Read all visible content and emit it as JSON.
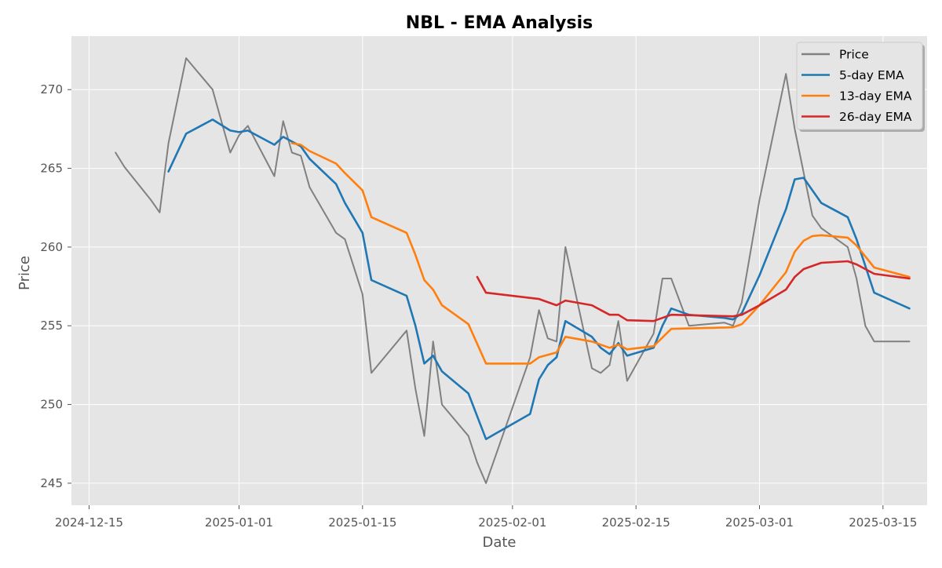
{
  "chart_data": {
    "type": "line",
    "title": "NBL - EMA Analysis",
    "xlabel": "Date",
    "ylabel": "Price",
    "xlim": [
      "2024-12-13",
      "2025-03-20"
    ],
    "ylim": [
      243.6,
      273.4
    ],
    "x_ticks": [
      "2024-12-15",
      "2025-01-01",
      "2025-01-15",
      "2025-02-01",
      "2025-02-15",
      "2025-03-01",
      "2025-03-15"
    ],
    "y_ticks": [
      245,
      250,
      255,
      260,
      265,
      270
    ],
    "grid": true,
    "legend_position": "top-right",
    "series": [
      {
        "name": "Price",
        "color": "#808080",
        "points": [
          [
            "2024-12-18",
            266.0
          ],
          [
            "2024-12-19",
            265.1
          ],
          [
            "2024-12-22",
            263.0
          ],
          [
            "2024-12-23",
            262.2
          ],
          [
            "2024-12-24",
            266.6
          ],
          [
            "2024-12-26",
            272.0
          ],
          [
            "2024-12-29",
            270.0
          ],
          [
            "2024-12-30",
            268.0
          ],
          [
            "2024-12-31",
            266.0
          ],
          [
            "2025-01-01",
            267.1
          ],
          [
            "2025-01-02",
            267.7
          ],
          [
            "2025-01-05",
            264.5
          ],
          [
            "2025-01-06",
            268.0
          ],
          [
            "2025-01-07",
            266.0
          ],
          [
            "2025-01-08",
            265.8
          ],
          [
            "2025-01-09",
            263.8
          ],
          [
            "2025-01-12",
            260.9
          ],
          [
            "2025-01-13",
            260.5
          ],
          [
            "2025-01-15",
            257.0
          ],
          [
            "2025-01-16",
            252.0
          ],
          [
            "2025-01-20",
            254.7
          ],
          [
            "2025-01-21",
            251.0
          ],
          [
            "2025-01-22",
            248.0
          ],
          [
            "2025-01-23",
            254.0
          ],
          [
            "2025-01-24",
            250.0
          ],
          [
            "2025-01-27",
            248.0
          ],
          [
            "2025-01-28",
            246.3
          ],
          [
            "2025-01-29",
            245.0
          ],
          [
            "2025-02-03",
            253.0
          ],
          [
            "2025-02-04",
            256.0
          ],
          [
            "2025-02-05",
            254.2
          ],
          [
            "2025-02-06",
            254.0
          ],
          [
            "2025-02-07",
            260.0
          ],
          [
            "2025-02-10",
            252.3
          ],
          [
            "2025-02-11",
            252.0
          ],
          [
            "2025-02-12",
            252.5
          ],
          [
            "2025-02-13",
            255.3
          ],
          [
            "2025-02-14",
            251.5
          ],
          [
            "2025-02-17",
            254.5
          ],
          [
            "2025-02-18",
            258.0
          ],
          [
            "2025-02-19",
            258.0
          ],
          [
            "2025-02-21",
            255.0
          ],
          [
            "2025-02-25",
            255.2
          ],
          [
            "2025-02-26",
            255.0
          ],
          [
            "2025-02-27",
            256.5
          ],
          [
            "2025-03-01",
            263.0
          ],
          [
            "2025-03-04",
            271.0
          ],
          [
            "2025-03-05",
            267.5
          ],
          [
            "2025-03-07",
            262.0
          ],
          [
            "2025-03-08",
            261.2
          ],
          [
            "2025-03-11",
            260.0
          ],
          [
            "2025-03-12",
            258.0
          ],
          [
            "2025-03-13",
            255.0
          ],
          [
            "2025-03-14",
            254.0
          ],
          [
            "2025-03-18",
            254.0
          ]
        ]
      },
      {
        "name": "5-day EMA",
        "color": "#1f77b4",
        "points": [
          [
            "2024-12-24",
            264.8
          ],
          [
            "2024-12-26",
            267.2
          ],
          [
            "2024-12-29",
            268.1
          ],
          [
            "2024-12-31",
            267.4
          ],
          [
            "2025-01-01",
            267.3
          ],
          [
            "2025-01-02",
            267.4
          ],
          [
            "2025-01-05",
            266.5
          ],
          [
            "2025-01-06",
            267.0
          ],
          [
            "2025-01-08",
            266.4
          ],
          [
            "2025-01-09",
            265.6
          ],
          [
            "2025-01-12",
            264.0
          ],
          [
            "2025-01-13",
            262.8
          ],
          [
            "2025-01-15",
            260.9
          ],
          [
            "2025-01-16",
            257.9
          ],
          [
            "2025-01-20",
            256.9
          ],
          [
            "2025-01-21",
            255.0
          ],
          [
            "2025-01-22",
            252.6
          ],
          [
            "2025-01-23",
            253.1
          ],
          [
            "2025-01-24",
            252.1
          ],
          [
            "2025-01-27",
            250.7
          ],
          [
            "2025-01-29",
            247.8
          ],
          [
            "2025-02-03",
            249.4
          ],
          [
            "2025-02-04",
            251.6
          ],
          [
            "2025-02-05",
            252.5
          ],
          [
            "2025-02-06",
            253.0
          ],
          [
            "2025-02-07",
            255.3
          ],
          [
            "2025-02-10",
            254.3
          ],
          [
            "2025-02-11",
            253.6
          ],
          [
            "2025-02-12",
            253.2
          ],
          [
            "2025-02-13",
            253.9
          ],
          [
            "2025-02-14",
            253.1
          ],
          [
            "2025-02-17",
            253.6
          ],
          [
            "2025-02-18",
            255.0
          ],
          [
            "2025-02-19",
            256.1
          ],
          [
            "2025-02-21",
            255.7
          ],
          [
            "2025-02-25",
            255.5
          ],
          [
            "2025-02-26",
            255.4
          ],
          [
            "2025-02-27",
            255.8
          ],
          [
            "2025-03-01",
            258.2
          ],
          [
            "2025-03-04",
            262.4
          ],
          [
            "2025-03-05",
            264.3
          ],
          [
            "2025-03-06",
            264.4
          ],
          [
            "2025-03-08",
            262.8
          ],
          [
            "2025-03-11",
            261.9
          ],
          [
            "2025-03-12",
            260.5
          ],
          [
            "2025-03-14",
            257.1
          ],
          [
            "2025-03-18",
            256.1
          ]
        ]
      },
      {
        "name": "13-day EMA",
        "color": "#ff7f0e",
        "points": [
          [
            "2025-01-07",
            266.6
          ],
          [
            "2025-01-08",
            266.5
          ],
          [
            "2025-01-09",
            266.1
          ],
          [
            "2025-01-12",
            265.3
          ],
          [
            "2025-01-13",
            264.7
          ],
          [
            "2025-01-15",
            263.6
          ],
          [
            "2025-01-16",
            261.9
          ],
          [
            "2025-01-20",
            260.9
          ],
          [
            "2025-01-21",
            259.5
          ],
          [
            "2025-01-22",
            257.9
          ],
          [
            "2025-01-23",
            257.3
          ],
          [
            "2025-01-24",
            256.3
          ],
          [
            "2025-01-27",
            255.1
          ],
          [
            "2025-01-29",
            252.6
          ],
          [
            "2025-02-03",
            252.6
          ],
          [
            "2025-02-04",
            253.0
          ],
          [
            "2025-02-06",
            253.3
          ],
          [
            "2025-02-07",
            254.3
          ],
          [
            "2025-02-10",
            254.0
          ],
          [
            "2025-02-11",
            253.8
          ],
          [
            "2025-02-12",
            253.6
          ],
          [
            "2025-02-13",
            253.8
          ],
          [
            "2025-02-14",
            253.5
          ],
          [
            "2025-02-17",
            253.7
          ],
          [
            "2025-02-19",
            254.8
          ],
          [
            "2025-02-26",
            254.9
          ],
          [
            "2025-02-27",
            255.1
          ],
          [
            "2025-03-01",
            256.3
          ],
          [
            "2025-03-04",
            258.4
          ],
          [
            "2025-03-05",
            259.7
          ],
          [
            "2025-03-06",
            260.4
          ],
          [
            "2025-03-07",
            260.7
          ],
          [
            "2025-03-08",
            260.75
          ],
          [
            "2025-03-11",
            260.6
          ],
          [
            "2025-03-12",
            260.1
          ],
          [
            "2025-03-14",
            258.7
          ],
          [
            "2025-03-18",
            258.1
          ]
        ]
      },
      {
        "name": "26-day EMA",
        "color": "#d62728",
        "points": [
          [
            "2025-01-28",
            258.1
          ],
          [
            "2025-01-29",
            257.1
          ],
          [
            "2025-02-04",
            256.7
          ],
          [
            "2025-02-06",
            256.3
          ],
          [
            "2025-02-07",
            256.6
          ],
          [
            "2025-02-10",
            256.3
          ],
          [
            "2025-02-11",
            256.0
          ],
          [
            "2025-02-12",
            255.7
          ],
          [
            "2025-02-13",
            255.7
          ],
          [
            "2025-02-14",
            255.35
          ],
          [
            "2025-02-17",
            255.3
          ],
          [
            "2025-02-19",
            255.7
          ],
          [
            "2025-02-26",
            255.6
          ],
          [
            "2025-02-27",
            255.7
          ],
          [
            "2025-03-01",
            256.3
          ],
          [
            "2025-03-04",
            257.3
          ],
          [
            "2025-03-05",
            258.1
          ],
          [
            "2025-03-06",
            258.6
          ],
          [
            "2025-03-07",
            258.8
          ],
          [
            "2025-03-08",
            259.0
          ],
          [
            "2025-03-11",
            259.1
          ],
          [
            "2025-03-12",
            258.9
          ],
          [
            "2025-03-14",
            258.3
          ],
          [
            "2025-03-18",
            258.0
          ]
        ]
      }
    ]
  }
}
